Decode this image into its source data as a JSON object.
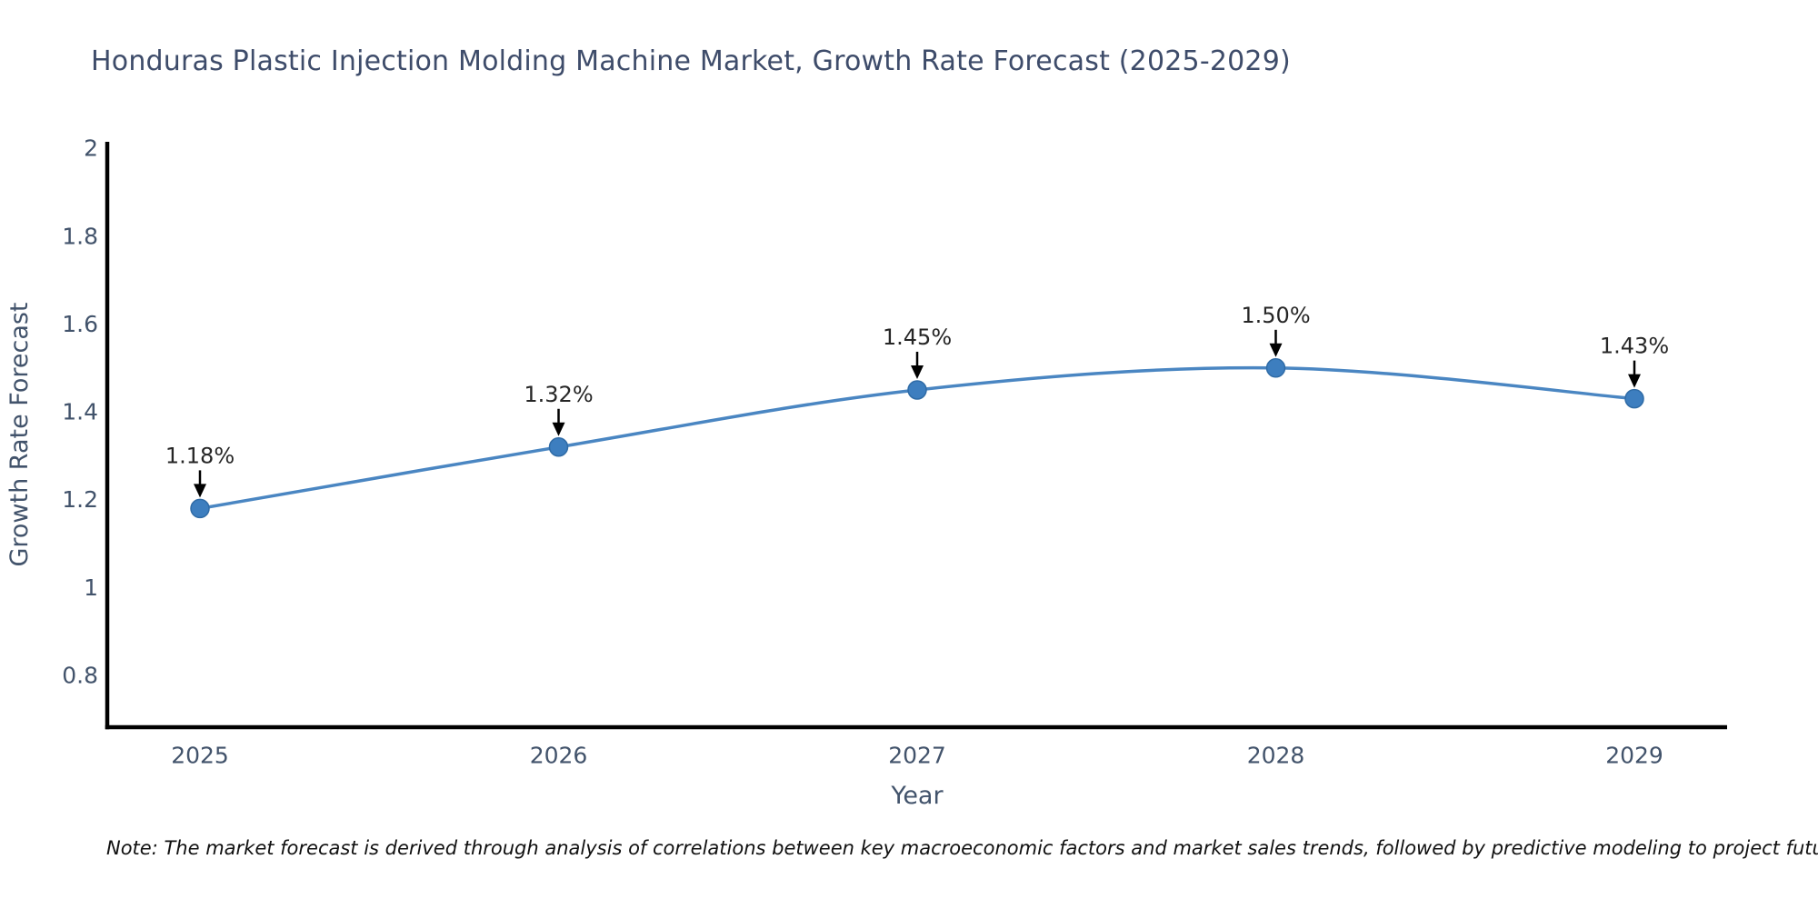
{
  "chart_data": {
    "type": "line",
    "title": "Honduras Plastic Injection Molding Machine Market, Growth Rate Forecast (2025-2029)",
    "xlabel": "Year",
    "ylabel": "Growth Rate Forecast",
    "categories": [
      "2025",
      "2026",
      "2027",
      "2028",
      "2029"
    ],
    "series": [
      {
        "name": "Growth Rate Forecast",
        "values": [
          1.18,
          1.32,
          1.45,
          1.5,
          1.43
        ]
      }
    ],
    "point_labels": [
      "1.18%",
      "1.32%",
      "1.45%",
      "1.50%",
      "1.43%"
    ],
    "yticks": [
      0.8,
      1,
      1.2,
      1.4,
      1.6,
      1.8,
      2
    ],
    "ytick_labels": [
      "0.8",
      "1",
      "1.2",
      "1.4",
      "1.6",
      "1.8",
      "2"
    ],
    "ylim": [
      0.682,
      2.015
    ],
    "grid": false,
    "legend_position": "none",
    "colors": {
      "line": "#4a86c2",
      "marker_fill": "#3d7ebf",
      "marker_edge": "#2f6ba6",
      "axis_spine": "#000000",
      "tick_text": "#42536b",
      "title_text": "#3e4c6a",
      "annotation_text": "#262626",
      "arrow": "#000000",
      "background": "#ffffff"
    }
  },
  "note": {
    "text": "Note: The market forecast is derived through analysis of correlations between key macroeconomic factors and market sales trends, followed by predictive modeling to project future sales"
  }
}
